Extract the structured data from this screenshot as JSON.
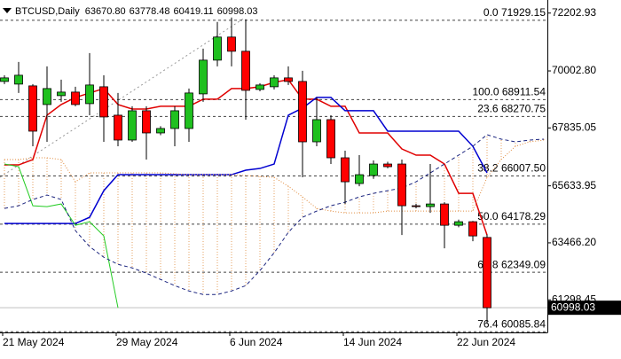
{
  "chart_data": {
    "type": "candlestick",
    "title": "BTCUSD,Daily",
    "last_bar_labels": [
      "63670.80",
      "63778.48",
      "60419.11",
      "60998.03"
    ],
    "categories": [
      "21 May 2024",
      null,
      null,
      null,
      null,
      null,
      null,
      null,
      "29 May 2024",
      null,
      null,
      null,
      null,
      null,
      null,
      null,
      "6 Jun 2024",
      null,
      null,
      null,
      null,
      null,
      null,
      null,
      "14 Jun 2024",
      null,
      null,
      null,
      null,
      null,
      null,
      null,
      "22 Jun 2024",
      null,
      null,
      null,
      null,
      null,
      null
    ],
    "candles": {
      "open": [
        69603,
        69502,
        69434,
        68725,
        69063,
        69198,
        68759,
        69400,
        68320,
        67375,
        68489,
        67645,
        67814,
        67814,
        69130,
        70413,
        71291,
        70751,
        69299,
        69400,
        69738,
        69603,
        67307,
        68151,
        66700,
        65721,
        66024,
        66463,
        66463,
        64877,
        64843,
        64944,
        64134,
        64269,
        63670.8
      ],
      "high": [
        69839,
        70346,
        69502,
        70177,
        69670,
        69400,
        70683,
        69839,
        69164,
        68658,
        68658,
        67900,
        68658,
        69333,
        70852,
        71865,
        72034,
        71966,
        69535,
        69839,
        70177,
        70008,
        68995,
        68320,
        66970,
        66801,
        66600,
        66550,
        66632,
        64950,
        66463,
        65012,
        64350,
        64300,
        63778.48
      ],
      "low": [
        69502,
        69164,
        67138,
        67307,
        68826,
        68658,
        68320,
        67307,
        67138,
        67307,
        66632,
        67560,
        67138,
        67307,
        68826,
        70177,
        70177,
        68151,
        69230,
        69300,
        69468,
        65957,
        67138,
        66463,
        64944,
        65619,
        65900,
        66300,
        63762,
        64780,
        64606,
        63256,
        64060,
        63526,
        60419.11
      ],
      "close": [
        69738,
        69839,
        67712,
        69333,
        69198,
        68725,
        69468,
        68253,
        67375,
        68489,
        67645,
        67814,
        68489,
        69164,
        70413,
        71291,
        70751,
        69265,
        69468,
        69738,
        69603,
        67307,
        68151,
        66700,
        65788,
        66058,
        66463,
        66362,
        64877,
        64843,
        64944,
        64134,
        64269,
        63729,
        60998.03
      ],
      "up_color": "#1fc01f",
      "down_color": "#ff0000"
    },
    "lines": [
      {
        "color": "#e00000",
        "style": "solid",
        "width": 1.5,
        "values": [
          66430,
          66430,
          66632,
          68320,
          68725,
          68995,
          69164,
          69333,
          68725,
          68556,
          68556,
          68658,
          68658,
          68658,
          68928,
          68928,
          69333,
          69333,
          69400,
          69569,
          69670,
          68928,
          68928,
          68658,
          68658,
          67645,
          67645,
          67645,
          67037,
          66801,
          66801,
          66463,
          65349,
          65349,
          63762,
          null,
          null,
          null,
          null
        ]
      },
      {
        "color": "#0000d0",
        "style": "solid",
        "width": 1.5,
        "values": [
          64201,
          64201,
          64201,
          64201,
          64201,
          64201,
          64438,
          65450,
          66058,
          66058,
          66058,
          66058,
          66058,
          66058,
          66058,
          66058,
          66058,
          66227,
          66294,
          66463,
          68320,
          68590,
          68995,
          68995,
          68489,
          68489,
          68489,
          67712,
          67712,
          67712,
          67712,
          67712,
          67712,
          67138,
          66126,
          null,
          null,
          null,
          null
        ]
      },
      {
        "color": "#22cc22",
        "style": "solid",
        "width": 1,
        "values": [
          66463,
          66362,
          64877,
          64843,
          64944,
          64134,
          64269,
          63729,
          60998.03,
          null,
          null,
          null,
          null,
          null,
          null,
          null,
          null,
          null,
          null,
          null,
          null,
          null,
          null,
          null,
          null,
          null,
          null,
          null,
          null,
          null,
          null,
          null,
          null,
          null,
          null,
          null,
          null,
          null,
          null
        ]
      },
      {
        "color": "#e08a3c",
        "style": "dotted",
        "width": 1,
        "values": [
          66632,
          66632,
          66700,
          66700,
          66632,
          65788,
          66126,
          66126,
          66126,
          66126,
          66126,
          66126,
          66092,
          66058,
          66058,
          66058,
          66058,
          66024,
          65991,
          65957,
          65619,
          65214,
          64775,
          64674,
          64606,
          64606,
          64606,
          64674,
          64674,
          64674,
          64674,
          64674,
          64674,
          64674,
          65957,
          66632,
          67138,
          67307,
          67375
        ]
      },
      {
        "color": "#1a237e",
        "style": "dashed",
        "width": 1,
        "values": [
          64775,
          64877,
          65113,
          65282,
          65113,
          63931,
          63324,
          62918,
          62648,
          62513,
          62311,
          62074,
          61838,
          61636,
          61501,
          61501,
          61636,
          61838,
          62412,
          63087,
          63864,
          64438,
          64674,
          64877,
          65012,
          65214,
          65349,
          65450,
          65552,
          65788,
          66126,
          66463,
          66801,
          67138,
          67578,
          67409,
          67307,
          67375,
          67409
        ]
      }
    ],
    "cloud": {
      "upper_line": 3,
      "lower_line": 4,
      "color": "#e08a3c"
    },
    "fib_levels": [
      {
        "value": 71929.15,
        "label": "0.0 71929.15"
      },
      {
        "value": 68911.54,
        "label": "100.0 68911.54"
      },
      {
        "value": 68270.75,
        "label": "23.6 68270.75"
      },
      {
        "value": 66007.5,
        "label": "38.2 66007.50"
      },
      {
        "value": 64178.29,
        "label": "50.0 64178.29"
      },
      {
        "value": 62349.09,
        "label": "61.8 62349.09"
      },
      {
        "value": 60085.84,
        "label": "76.4 60085.84"
      }
    ],
    "ylim": [
      60060,
      72700
    ],
    "yticks": [
      72202.93,
      {
        "value": 70002.8,
        "label": "70002.80"
      },
      67835.05,
      65633.95,
      {
        "value": 63466.2,
        "label": "63466.20"
      },
      61298.45
    ],
    "grid": false
  }
}
